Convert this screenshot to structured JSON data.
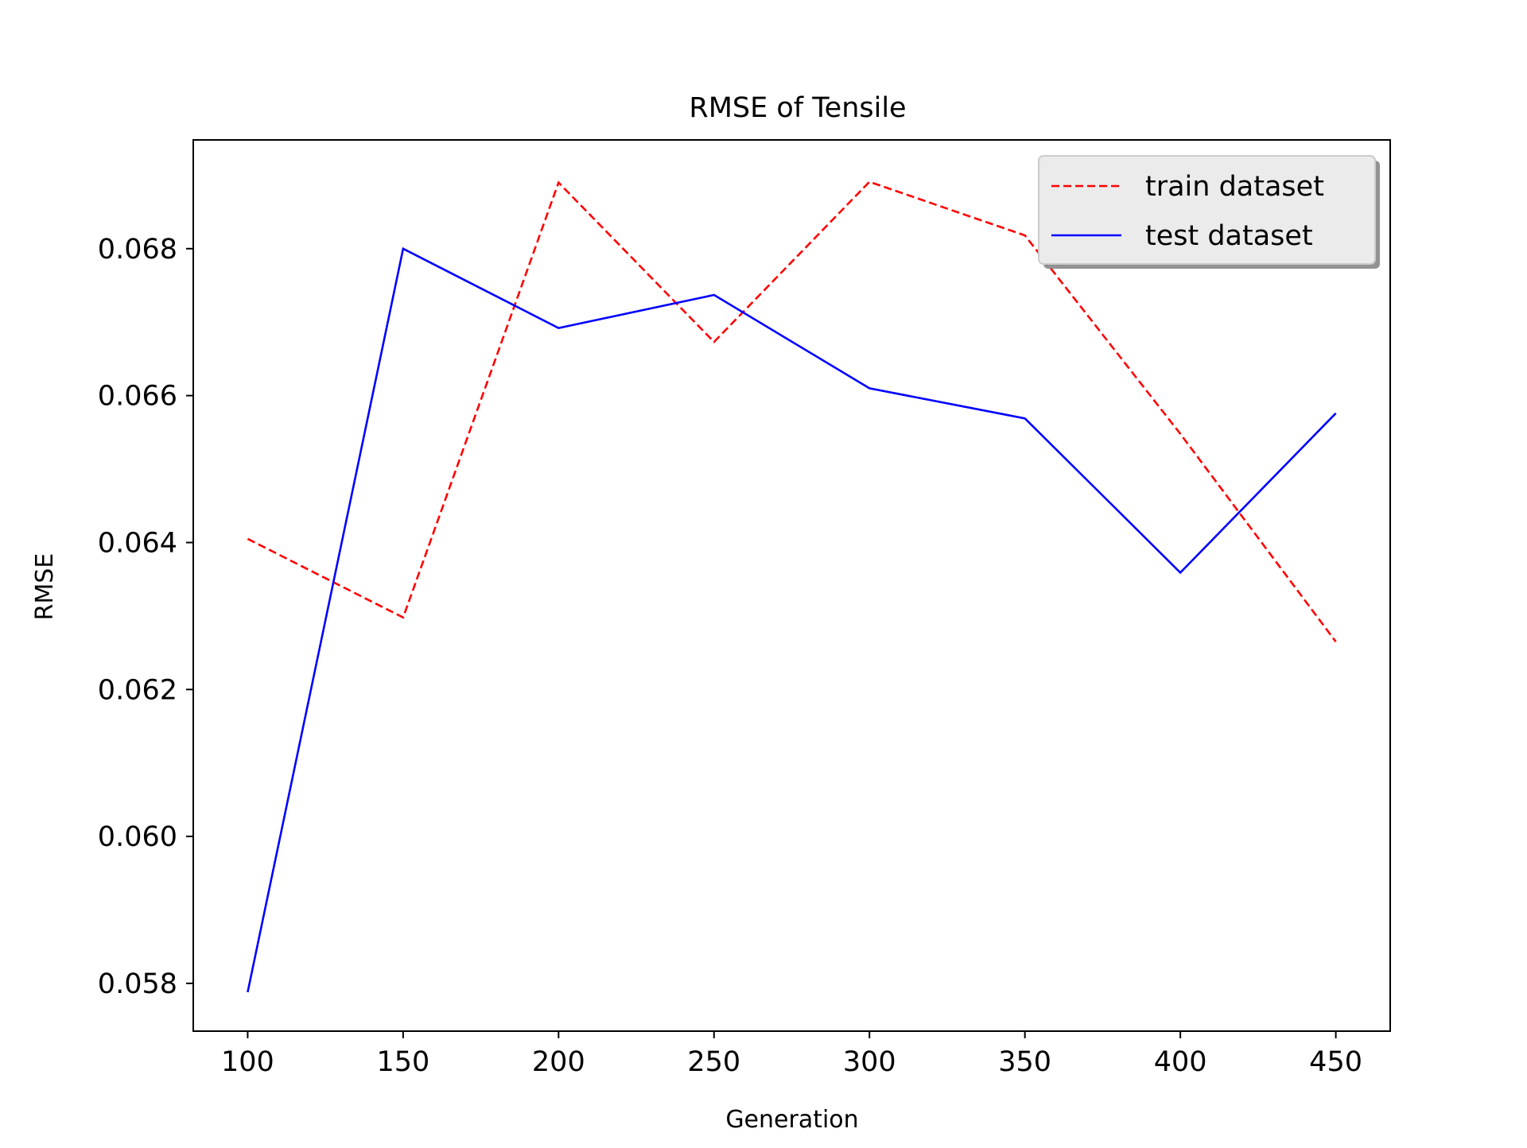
{
  "chart_data": {
    "type": "line",
    "title": "RMSE of Tensile",
    "xlabel": "Generation",
    "ylabel": "RMSE",
    "xlim": [
      82.5,
      467.5
    ],
    "ylim": [
      0.05735,
      0.06948
    ],
    "x_ticks": [
      100,
      150,
      200,
      250,
      300,
      350,
      400,
      450
    ],
    "x_tick_labels": [
      "100",
      "150",
      "200",
      "250",
      "300",
      "350",
      "400",
      "450"
    ],
    "y_ticks": [
      0.058,
      0.06,
      0.062,
      0.064,
      0.066,
      0.068
    ],
    "y_tick_labels": [
      "0.058",
      "0.060",
      "0.062",
      "0.064",
      "0.066",
      "0.068"
    ],
    "grid": false,
    "legend_position": "top-right",
    "x": [
      100,
      150,
      200,
      250,
      300,
      350,
      400,
      450
    ],
    "series": [
      {
        "name": "train dataset",
        "color": "#ff0000",
        "style": "dashed",
        "values": [
          0.06405,
          0.06298,
          0.0689,
          0.06673,
          0.06891,
          0.06818,
          0.06548,
          0.06265
        ]
      },
      {
        "name": "test dataset",
        "color": "#0000ff",
        "style": "solid",
        "values": [
          0.05788,
          0.068,
          0.06692,
          0.06737,
          0.0661,
          0.06569,
          0.06359,
          0.06576
        ]
      }
    ]
  }
}
